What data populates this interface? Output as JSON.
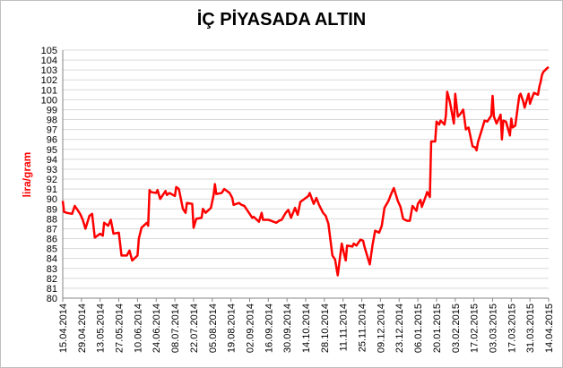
{
  "chart_data": {
    "type": "line",
    "title": "İÇ PİYASADA ALTIN",
    "y_label": "lira/gram",
    "color": "#ff0000",
    "grid": true,
    "ylim": [
      80,
      105
    ],
    "yticks": [
      80,
      81,
      82,
      83,
      84,
      85,
      86,
      87,
      88,
      89,
      90,
      91,
      92,
      93,
      94,
      95,
      96,
      97,
      98,
      99,
      100,
      101,
      102,
      103,
      104,
      105
    ],
    "xlim": [
      "15.04.2014",
      "14.04.2015"
    ],
    "xticks": [
      "15.04.2014",
      "29.04.2014",
      "13.05.2014",
      "27.05.2014",
      "10.06.2014",
      "24.06.2014",
      "08.07.2014",
      "22.07.2014",
      "05.08.2014",
      "19.08.2014",
      "02.09.2014",
      "16.09.2014",
      "30.09.2014",
      "14.10.2014",
      "28.10.2014",
      "11.11.2014",
      "25.11.2014",
      "09.12.2014",
      "23.12.2014",
      "06.01.2015",
      "20.01.2015",
      "03.02.2015",
      "17.02.2015",
      "03.03.2015",
      "17.03.2015",
      "31.03.2015",
      "14.04.2015"
    ],
    "x": [
      "15.04.2014",
      "16.04.2014",
      "18.04.2014",
      "22.04.2014",
      "24.04.2014",
      "28.04.2014",
      "30.04.2014",
      "02.05.2014",
      "05.05.2014",
      "07.05.2014",
      "09.05.2014",
      "13.05.2014",
      "15.05.2014",
      "16.05.2014",
      "19.05.2014",
      "21.05.2014",
      "23.05.2014",
      "27.05.2014",
      "29.05.2014",
      "02.06.2014",
      "04.06.2014",
      "06.06.2014",
      "10.06.2014",
      "11.06.2014",
      "13.06.2014",
      "17.06.2014",
      "18.06.2014",
      "19.06.2014",
      "20.06.2014",
      "24.06.2014",
      "25.06.2014",
      "27.06.2014",
      "01.07.2014",
      "02.07.2014",
      "04.07.2014",
      "08.07.2014",
      "09.07.2014",
      "11.07.2014",
      "14.07.2014",
      "16.07.2014",
      "17.07.2014",
      "21.07.2014",
      "22.07.2014",
      "24.07.2014",
      "28.07.2014",
      "29.07.2014",
      "31.07.2014",
      "04.08.2014",
      "06.08.2014",
      "07.08.2014",
      "08.08.2014",
      "12.08.2014",
      "14.08.2014",
      "18.08.2014",
      "20.08.2014",
      "21.08.2014",
      "25.08.2014",
      "27.08.2014",
      "29.08.2014",
      "02.09.2014",
      "04.09.2014",
      "05.09.2014",
      "09.09.2014",
      "11.09.2014",
      "12.09.2014",
      "16.09.2014",
      "18.09.2014",
      "22.09.2014",
      "24.09.2014",
      "26.09.2014",
      "29.09.2014",
      "01.10.2014",
      "03.10.2014",
      "06.10.2014",
      "08.10.2014",
      "10.10.2014",
      "14.10.2014",
      "16.10.2014",
      "17.10.2014",
      "20.10.2014",
      "22.10.2014",
      "24.10.2014",
      "27.10.2014",
      "29.10.2014",
      "31.10.2014",
      "03.11.2014",
      "05.11.2014",
      "07.11.2014",
      "10.11.2014",
      "12.11.2014",
      "13.11.2014",
      "14.11.2014",
      "18.11.2014",
      "19.11.2014",
      "21.11.2014",
      "24.11.2014",
      "26.11.2014",
      "27.11.2014",
      "01.12.2014",
      "03.12.2014",
      "05.12.2014",
      "08.12.2014",
      "10.12.2014",
      "12.12.2014",
      "15.12.2014",
      "17.12.2014",
      "19.12.2014",
      "22.12.2014",
      "24.12.2014",
      "26.12.2014",
      "29.12.2014",
      "31.12.2014",
      "02.01.2015",
      "05.01.2015",
      "06.01.2015",
      "08.01.2015",
      "09.01.2015",
      "12.01.2015",
      "13.01.2015",
      "15.01.2015",
      "16.01.2015",
      "19.01.2015",
      "20.01.2015",
      "22.01.2015",
      "23.01.2015",
      "26.01.2015",
      "27.01.2015",
      "28.01.2015",
      "30.01.2015",
      "02.02.2015",
      "03.02.2015",
      "05.02.2015",
      "07.02.2015",
      "09.02.2015",
      "11.02.2015",
      "13.02.2015",
      "16.02.2015",
      "18.02.2015",
      "19.02.2015",
      "20.02.2015",
      "23.02.2015",
      "25.02.2015",
      "27.02.2015",
      "02.03.2015",
      "03.03.2015",
      "04.03.2015",
      "06.03.2015",
      "09.03.2015",
      "10.03.2015",
      "11.03.2015",
      "13.03.2015",
      "16.03.2015",
      "17.03.2015",
      "18.03.2015",
      "20.03.2015",
      "23.03.2015",
      "24.03.2015",
      "26.03.2015",
      "27.03.2015",
      "30.03.2015",
      "31.03.2015",
      "01.04.2015",
      "03.04.2015",
      "06.04.2015",
      "07.04.2015",
      "08.04.2015",
      "09.04.2015",
      "10.04.2015",
      "13.04.2015",
      "14.04.2015"
    ],
    "values": [
      89.8,
      88.7,
      88.6,
      88.5,
      89.3,
      88.5,
      87.9,
      87.0,
      88.3,
      88.5,
      86.1,
      86.5,
      86.3,
      87.6,
      87.3,
      87.9,
      86.5,
      86.6,
      84.3,
      84.3,
      84.8,
      83.8,
      84.3,
      86.0,
      87.1,
      87.6,
      87.3,
      90.9,
      90.7,
      90.6,
      90.9,
      90.0,
      90.8,
      90.4,
      90.6,
      90.3,
      91.2,
      91.0,
      89.0,
      88.6,
      89.6,
      89.5,
      87.1,
      88.0,
      88.1,
      89.0,
      88.6,
      89.1,
      90.4,
      91.5,
      90.5,
      90.6,
      91.0,
      90.6,
      90.1,
      89.4,
      89.6,
      89.4,
      89.3,
      88.5,
      88.1,
      88.2,
      87.7,
      88.6,
      87.9,
      87.9,
      87.8,
      87.6,
      87.8,
      87.9,
      88.6,
      88.9,
      88.1,
      89.1,
      88.4,
      89.7,
      90.1,
      90.3,
      90.6,
      89.5,
      90.1,
      89.4,
      88.6,
      88.3,
      87.5,
      84.3,
      83.9,
      82.3,
      85.5,
      84.3,
      83.8,
      85.3,
      85.2,
      85.5,
      85.3,
      85.9,
      85.8,
      85.2,
      83.4,
      85.3,
      86.8,
      86.6,
      87.3,
      89.1,
      89.8,
      90.5,
      91.1,
      89.8,
      89.2,
      88.0,
      87.8,
      87.8,
      89.3,
      88.8,
      89.5,
      89.9,
      89.2,
      90.3,
      90.7,
      90.2,
      95.8,
      95.8,
      97.8,
      97.5,
      97.9,
      97.5,
      98.4,
      100.8,
      99.8,
      97.6,
      100.6,
      98.3,
      98.6,
      99.0,
      97.0,
      97.2,
      95.3,
      95.2,
      94.9,
      95.7,
      97.0,
      97.9,
      97.8,
      98.4,
      100.4,
      98.3,
      97.6,
      98.5,
      96.0,
      97.9,
      97.8,
      96.4,
      98.1,
      97.2,
      97.4,
      100.4,
      100.6,
      99.8,
      99.2,
      100.6,
      99.6,
      100.0,
      100.7,
      100.5,
      101.3,
      101.8,
      102.5,
      102.8,
      103.2,
      103.3
    ]
  }
}
